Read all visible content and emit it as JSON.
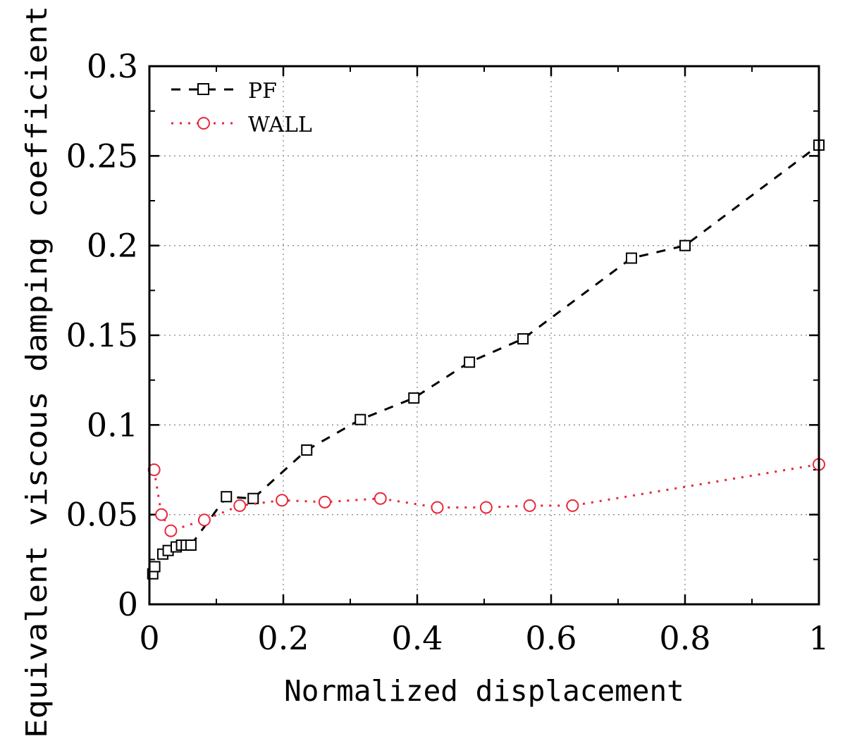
{
  "chart_data": {
    "type": "line",
    "title": "",
    "xlabel": "Normalized displacement",
    "ylabel": "Equivalent viscous damping coefficient",
    "xlim": [
      0,
      1
    ],
    "ylim": [
      0,
      0.3
    ],
    "grid": true,
    "legend_position": "top-left",
    "x_ticks": [
      0,
      0.2,
      0.4,
      0.6,
      0.8,
      1
    ],
    "x_tick_labels": [
      "0",
      "0.2",
      "0.4",
      "0.6",
      "0.8",
      "1"
    ],
    "y_ticks": [
      0,
      0.05,
      0.1,
      0.15,
      0.2,
      0.25,
      0.3
    ],
    "y_tick_labels": [
      "0",
      "0.05",
      "0.1",
      "0.15",
      "0.2",
      "0.25",
      "0.3"
    ],
    "series": [
      {
        "name": "PF",
        "color": "#000000",
        "marker": "square",
        "line_style": "dashed",
        "x": [
          0.005,
          0.008,
          0.02,
          0.028,
          0.04,
          0.048,
          0.055,
          0.062,
          0.115,
          0.155,
          0.235,
          0.315,
          0.395,
          0.478,
          0.558,
          0.72,
          0.8,
          1.0
        ],
        "y": [
          0.017,
          0.021,
          0.028,
          0.03,
          0.032,
          0.033,
          0.033,
          0.033,
          0.06,
          0.059,
          0.086,
          0.103,
          0.115,
          0.135,
          0.148,
          0.193,
          0.2,
          0.256
        ]
      },
      {
        "name": "WALL",
        "color": "#e8283c",
        "marker": "circle",
        "line_style": "dotted",
        "x": [
          0.007,
          0.018,
          0.032,
          0.082,
          0.135,
          0.198,
          0.262,
          0.345,
          0.43,
          0.503,
          0.568,
          0.632,
          1.0
        ],
        "y": [
          0.075,
          0.05,
          0.041,
          0.047,
          0.055,
          0.058,
          0.057,
          0.059,
          0.054,
          0.054,
          0.055,
          0.055,
          0.078
        ]
      }
    ]
  }
}
